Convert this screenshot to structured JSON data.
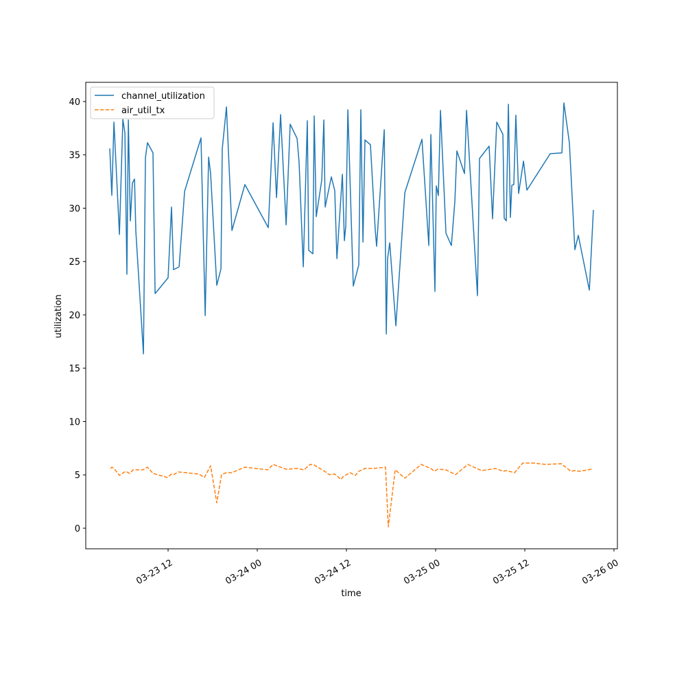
{
  "chart_data": {
    "type": "line",
    "title": "",
    "xlabel": "time",
    "ylabel": "utilization",
    "x_units": "hours since 03-23 00:00",
    "xlim": [
      0.92,
      72.46
    ],
    "ylim": [
      -1.93,
      41.8
    ],
    "grid": false,
    "legend_position": "top-left",
    "x_ticks": [
      {
        "value": 12,
        "label": "03-23 12"
      },
      {
        "value": 24,
        "label": "03-24 00"
      },
      {
        "value": 36,
        "label": "03-24 12"
      },
      {
        "value": 48,
        "label": "03-25 00"
      },
      {
        "value": 60,
        "label": "03-25 12"
      },
      {
        "value": 72,
        "label": "03-26 00"
      }
    ],
    "y_ticks": [
      {
        "value": 0,
        "label": "0"
      },
      {
        "value": 5,
        "label": "5"
      },
      {
        "value": 10,
        "label": "10"
      },
      {
        "value": 15,
        "label": "15"
      },
      {
        "value": 20,
        "label": "20"
      },
      {
        "value": 25,
        "label": "25"
      },
      {
        "value": 30,
        "label": "30"
      },
      {
        "value": 35,
        "label": "35"
      },
      {
        "value": 40,
        "label": "40"
      }
    ],
    "series": [
      {
        "name": "channel_utilization",
        "color": "#1f77b4",
        "style": "solid",
        "points": [
          [
            4.15,
            35.6
          ],
          [
            4.43,
            31.2
          ],
          [
            4.71,
            38.07
          ],
          [
            5.45,
            27.53
          ],
          [
            5.91,
            38.33
          ],
          [
            6.19,
            37.04
          ],
          [
            6.46,
            23.8
          ],
          [
            6.65,
            38.27
          ],
          [
            6.92,
            28.81
          ],
          [
            7.2,
            32.35
          ],
          [
            7.48,
            32.73
          ],
          [
            7.66,
            27.85
          ],
          [
            8.68,
            16.34
          ],
          [
            8.95,
            34.73
          ],
          [
            9.23,
            36.14
          ],
          [
            9.97,
            35.18
          ],
          [
            10.25,
            21.99
          ],
          [
            12.0,
            23.47
          ],
          [
            12.46,
            30.1
          ],
          [
            12.74,
            24.24
          ],
          [
            13.48,
            24.5
          ],
          [
            14.22,
            31.58
          ],
          [
            16.43,
            36.59
          ],
          [
            16.99,
            19.93
          ],
          [
            17.45,
            34.79
          ],
          [
            17.72,
            33.25
          ],
          [
            18.55,
            22.77
          ],
          [
            19.11,
            24.31
          ],
          [
            19.29,
            35.56
          ],
          [
            19.85,
            39.49
          ],
          [
            20.59,
            27.91
          ],
          [
            22.34,
            32.22
          ],
          [
            25.48,
            28.17
          ],
          [
            26.13,
            38.01
          ],
          [
            26.59,
            30.99
          ],
          [
            27.14,
            38.78
          ],
          [
            27.88,
            28.43
          ],
          [
            28.43,
            37.88
          ],
          [
            29.36,
            36.53
          ],
          [
            29.63,
            34.28
          ],
          [
            30.19,
            24.5
          ],
          [
            30.74,
            38.2
          ],
          [
            30.92,
            26.05
          ],
          [
            31.48,
            25.73
          ],
          [
            31.66,
            38.65
          ],
          [
            31.94,
            29.2
          ],
          [
            32.68,
            32.67
          ],
          [
            32.96,
            38.27
          ],
          [
            33.14,
            30.1
          ],
          [
            33.97,
            32.93
          ],
          [
            34.43,
            31.64
          ],
          [
            34.71,
            25.27
          ],
          [
            35.45,
            33.18
          ],
          [
            35.72,
            26.95
          ],
          [
            35.91,
            28.36
          ],
          [
            36.19,
            39.23
          ],
          [
            36.92,
            22.7
          ],
          [
            37.66,
            24.69
          ],
          [
            37.94,
            39.23
          ],
          [
            38.22,
            26.82
          ],
          [
            38.49,
            36.4
          ],
          [
            39.23,
            35.95
          ],
          [
            39.88,
            27.85
          ],
          [
            40.06,
            26.43
          ],
          [
            41.08,
            37.36
          ],
          [
            41.36,
            18.2
          ],
          [
            41.54,
            25.27
          ],
          [
            41.82,
            26.75
          ],
          [
            42.65,
            18.97
          ],
          [
            43.85,
            31.45
          ],
          [
            46.16,
            36.46
          ],
          [
            47.08,
            26.5
          ],
          [
            47.36,
            36.91
          ],
          [
            47.91,
            22.19
          ],
          [
            48.09,
            32.09
          ],
          [
            48.37,
            31.19
          ],
          [
            48.65,
            39.17
          ],
          [
            49.39,
            27.65
          ],
          [
            50.12,
            26.5
          ],
          [
            50.59,
            30.68
          ],
          [
            50.86,
            35.37
          ],
          [
            51.88,
            33.25
          ],
          [
            52.16,
            39.17
          ],
          [
            53.63,
            21.8
          ],
          [
            53.91,
            34.66
          ],
          [
            55.2,
            35.82
          ],
          [
            55.66,
            29.0
          ],
          [
            56.22,
            38.07
          ],
          [
            57.05,
            36.91
          ],
          [
            57.23,
            29.07
          ],
          [
            57.51,
            28.81
          ],
          [
            57.79,
            39.74
          ],
          [
            58.06,
            29.13
          ],
          [
            58.25,
            32.15
          ],
          [
            58.52,
            32.22
          ],
          [
            58.8,
            38.71
          ],
          [
            59.17,
            31.38
          ],
          [
            59.82,
            34.41
          ],
          [
            60.28,
            31.7
          ],
          [
            63.42,
            35.11
          ],
          [
            64.99,
            35.18
          ],
          [
            65.26,
            39.87
          ],
          [
            66.0,
            36.14
          ],
          [
            66.74,
            26.11
          ],
          [
            67.2,
            27.46
          ],
          [
            68.68,
            22.32
          ],
          [
            69.23,
            29.84
          ]
        ]
      },
      {
        "name": "air_util_tx",
        "color": "#ff7f0e",
        "style": "dashed",
        "points": [
          [
            4.25,
            5.6
          ],
          [
            4.43,
            5.72
          ],
          [
            4.71,
            5.6
          ],
          [
            5.45,
            4.95
          ],
          [
            6.28,
            5.34
          ],
          [
            6.83,
            5.14
          ],
          [
            7.29,
            5.47
          ],
          [
            8.59,
            5.47
          ],
          [
            9.23,
            5.72
          ],
          [
            9.97,
            5.14
          ],
          [
            11.91,
            4.76
          ],
          [
            12.46,
            5.08
          ],
          [
            12.74,
            5.02
          ],
          [
            13.38,
            5.27
          ],
          [
            16.15,
            5.08
          ],
          [
            16.89,
            4.76
          ],
          [
            17.72,
            5.85
          ],
          [
            18.55,
            2.38
          ],
          [
            19.2,
            5.02
          ],
          [
            19.85,
            5.21
          ],
          [
            20.59,
            5.21
          ],
          [
            22.34,
            5.72
          ],
          [
            25.39,
            5.47
          ],
          [
            26.13,
            5.98
          ],
          [
            27.88,
            5.53
          ],
          [
            29.36,
            5.6
          ],
          [
            30.28,
            5.47
          ],
          [
            31.11,
            5.98
          ],
          [
            31.66,
            5.92
          ],
          [
            33.05,
            5.34
          ],
          [
            33.69,
            5.02
          ],
          [
            34.43,
            5.08
          ],
          [
            35.26,
            4.57
          ],
          [
            35.54,
            4.82
          ],
          [
            36.46,
            5.21
          ],
          [
            37.2,
            4.95
          ],
          [
            37.66,
            5.34
          ],
          [
            38.49,
            5.6
          ],
          [
            39.69,
            5.6
          ],
          [
            41.26,
            5.72
          ],
          [
            41.63,
            0.13
          ],
          [
            42.56,
            5.47
          ],
          [
            43.85,
            4.69
          ],
          [
            46.06,
            5.98
          ],
          [
            47.36,
            5.6
          ],
          [
            47.82,
            5.34
          ],
          [
            48.28,
            5.53
          ],
          [
            49.39,
            5.47
          ],
          [
            50.68,
            5.02
          ],
          [
            52.34,
            5.98
          ],
          [
            54.19,
            5.4
          ],
          [
            56.12,
            5.6
          ],
          [
            57.05,
            5.34
          ],
          [
            57.51,
            5.4
          ],
          [
            58.62,
            5.21
          ],
          [
            59.72,
            6.11
          ],
          [
            61.2,
            6.11
          ],
          [
            62.77,
            5.98
          ],
          [
            64.9,
            6.05
          ],
          [
            66.19,
            5.34
          ],
          [
            66.74,
            5.4
          ],
          [
            67.39,
            5.34
          ],
          [
            68.96,
            5.53
          ],
          [
            69.14,
            5.47
          ]
        ]
      }
    ]
  }
}
